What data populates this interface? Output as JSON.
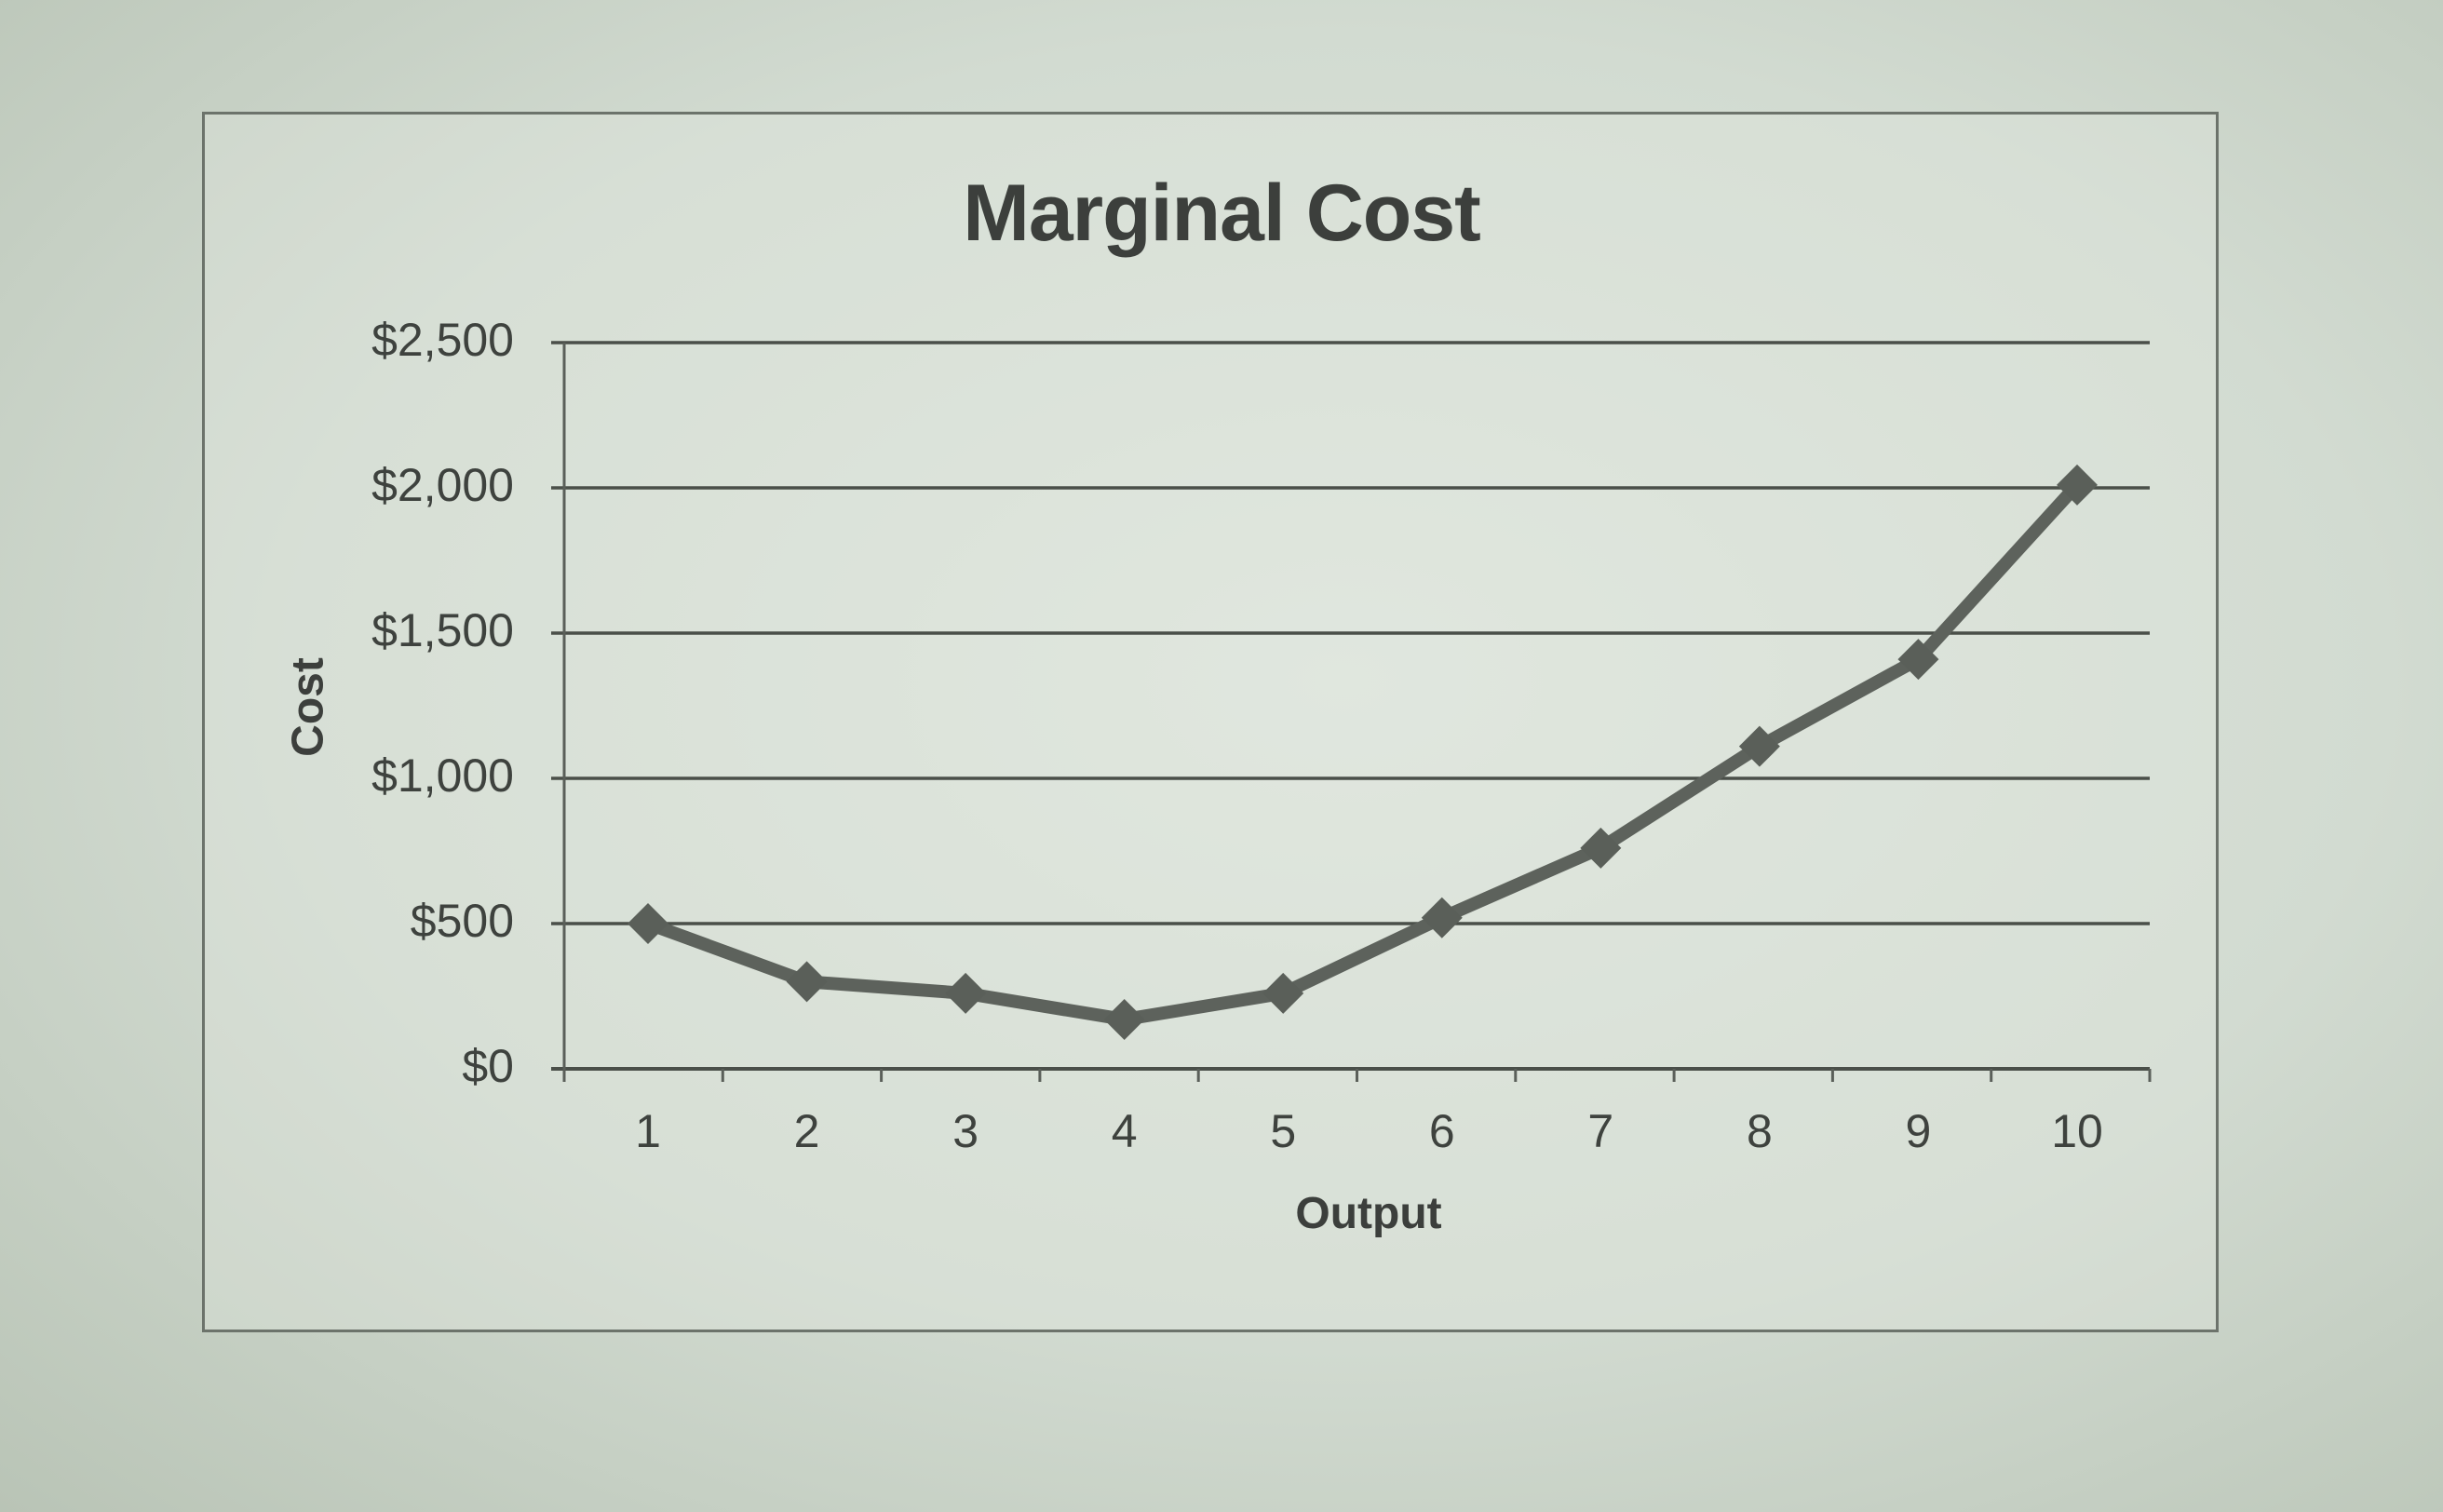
{
  "chart_data": {
    "type": "line",
    "title": "Marginal Cost",
    "xlabel": "Output",
    "ylabel": "Cost",
    "categories": [
      "1",
      "2",
      "3",
      "4",
      "5",
      "6",
      "7",
      "8",
      "9",
      "10"
    ],
    "x": [
      1,
      2,
      3,
      4,
      5,
      6,
      7,
      8,
      9,
      10
    ],
    "series": [
      {
        "name": "Marginal Cost",
        "values": [
          500,
          300,
          260,
          170,
          260,
          520,
          760,
          1110,
          1410,
          2010
        ],
        "color": "#5d625c",
        "marker": "diamond"
      }
    ],
    "ylim": [
      0,
      2500
    ],
    "yticks": [
      0,
      500,
      1000,
      1500,
      2000,
      2500
    ],
    "ytick_labels": [
      "$0",
      "$500",
      "$1,000",
      "$1,500",
      "$2,000",
      "$2,500"
    ],
    "grid": true,
    "legend": "none"
  },
  "labels": {
    "title": "Marginal Cost",
    "xaxis": "Output",
    "yaxis": "Cost",
    "yticks": [
      "$2,500",
      "$2,000",
      "$1,500",
      "$1,000",
      "$500",
      "$0"
    ],
    "xticks": [
      "1",
      "2",
      "3",
      "4",
      "5",
      "6",
      "7",
      "8",
      "9",
      "10"
    ]
  }
}
